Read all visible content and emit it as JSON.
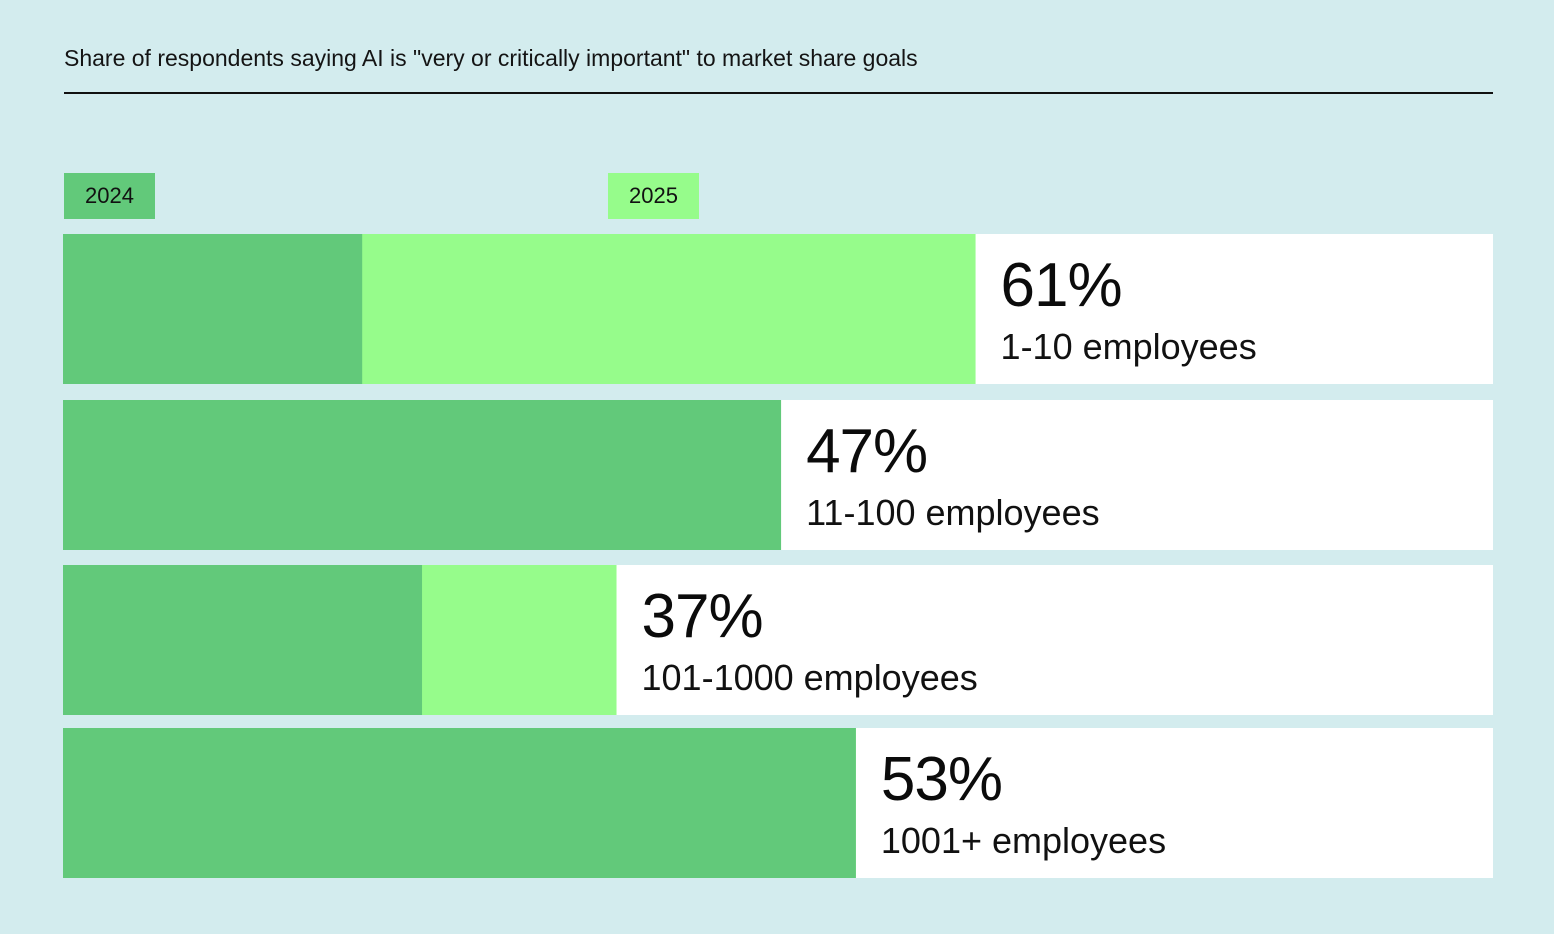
{
  "colors": {
    "background": "#d3ecee",
    "series_2024": "#62c97a",
    "series_2025": "#96fc8b",
    "panel": "#ffffff",
    "text": "#111111"
  },
  "chart_data": {
    "type": "bar",
    "orientation": "horizontal",
    "title": "Share of respondents saying AI is \"very or critically important\" to market share goals",
    "xlabel": "",
    "ylabel": "",
    "xlim": [
      0,
      100
    ],
    "grid": false,
    "legend_position": "top-left",
    "categories": [
      "1-10 employees",
      "11-100 employees",
      "101-1000 employees",
      "1001+ employees"
    ],
    "series": [
      {
        "name": "2024",
        "color": "#62c97a",
        "values": [
          20,
          48,
          24,
          53
        ]
      },
      {
        "name": "2025",
        "color": "#96fc8b",
        "values": [
          61,
          47,
          37,
          53
        ]
      }
    ],
    "data_labels": [
      "61%",
      "47%",
      "37%",
      "53%"
    ]
  }
}
